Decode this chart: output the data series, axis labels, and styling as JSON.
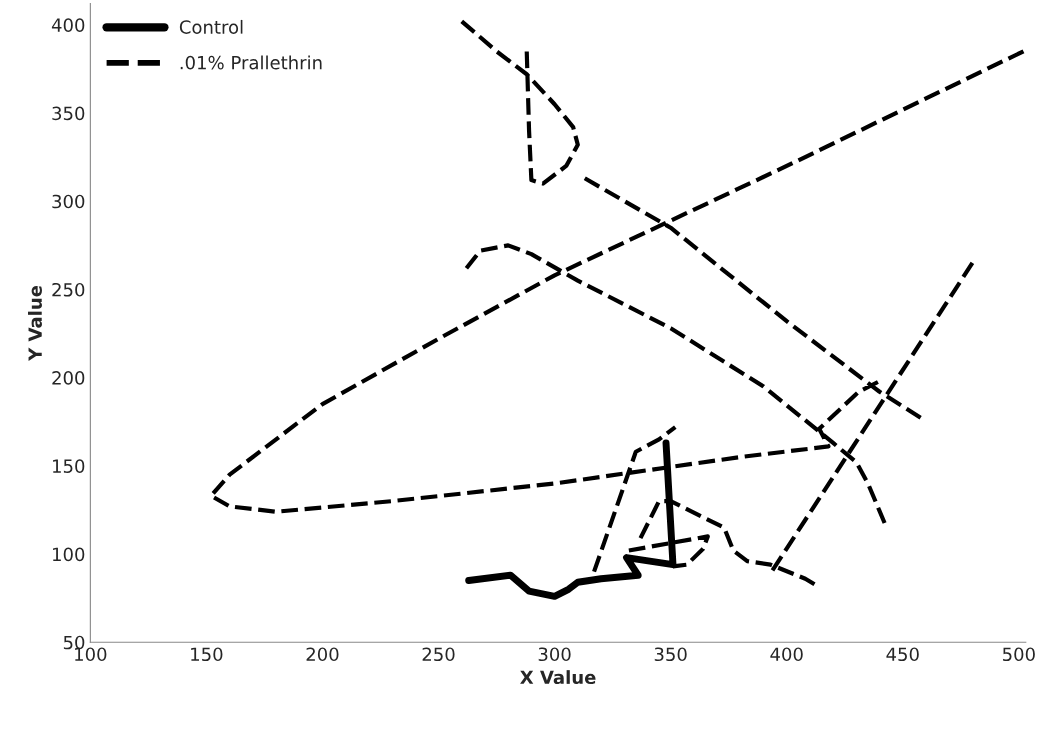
{
  "chart_data": {
    "type": "line",
    "xlabel": "X Value",
    "ylabel": "Y Value",
    "xlim": [
      100,
      503
    ],
    "ylim": [
      50,
      412
    ],
    "xticks": [
      100,
      150,
      200,
      250,
      300,
      350,
      400,
      450,
      500
    ],
    "yticks": [
      50,
      100,
      150,
      200,
      250,
      300,
      350,
      400
    ],
    "grid": false,
    "legend": "top left",
    "marker": "none",
    "series": [
      {
        "name": "Control",
        "color": "#000000",
        "line_style": "solid",
        "x": [
          263,
          281,
          289,
          300,
          306,
          310,
          320,
          336,
          331,
          351,
          348
        ],
        "values": [
          85,
          88,
          79,
          76,
          80,
          84,
          86,
          88,
          98,
          94,
          163
        ]
      },
      {
        "name": ".01% Prallethrin",
        "color": "#000000",
        "line_style": "dashed",
        "x": [
          260,
          275,
          288,
          300,
          308,
          310,
          305,
          295,
          290,
          289,
          288,
          null,
          313,
          350,
          400,
          440,
          458,
          null,
          262,
          268,
          280,
          290,
          310,
          350,
          390,
          420,
          430,
          435,
          443,
          null,
          502,
          400,
          300,
          250,
          200,
          160,
          152,
          160,
          180,
          230,
          300,
          380,
          418,
          414,
          431,
          440,
          null,
          480,
          393,
          null,
          317,
          335,
          345,
          352,
          null,
          337,
          345,
          350,
          373,
          377,
          383,
          393,
          408,
          413,
          null,
          332,
          366,
          364,
          357,
          351
        ],
        "values": [
          402,
          385,
          372,
          355,
          342,
          332,
          320,
          310,
          312,
          340,
          385,
          null,
          313,
          285,
          232,
          192,
          177,
          null,
          262,
          272,
          275,
          270,
          255,
          228,
          195,
          163,
          152,
          140,
          115,
          null,
          385,
          320,
          258,
          222,
          185,
          145,
          133,
          127,
          124,
          130,
          140,
          155,
          161,
          171,
          192,
          198,
          null,
          265,
          89,
          null,
          90,
          158,
          165,
          172,
          null,
          109,
          130,
          130,
          115,
          102,
          96,
          94,
          86,
          82,
          null,
          102,
          110,
          103,
          94,
          93
        ]
      }
    ]
  }
}
